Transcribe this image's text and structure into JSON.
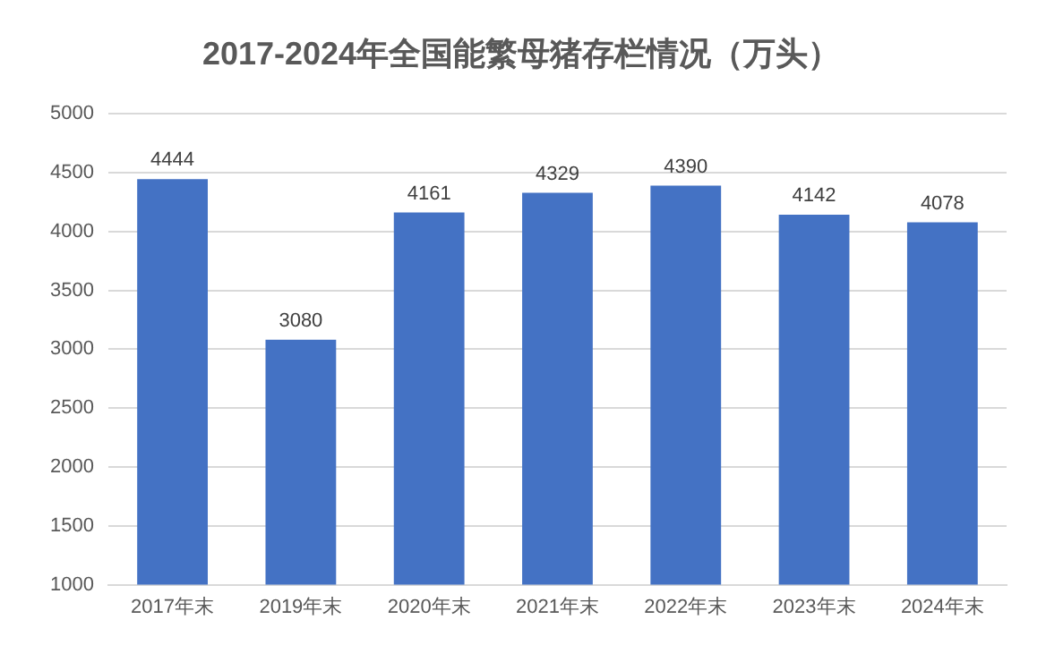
{
  "chart_data": {
    "type": "bar",
    "title": "2017-2024年全国能繁母猪存栏情况（万头）",
    "categories": [
      "2017年末",
      "2019年末",
      "2020年末",
      "2021年末",
      "2022年末",
      "2023年末",
      "2024年末"
    ],
    "values": [
      4444,
      3080,
      4161,
      4329,
      4390,
      4142,
      4078
    ],
    "color": "#4472c4",
    "ylim": [
      1000,
      5000
    ],
    "yticks": [
      1000,
      1500,
      2000,
      2500,
      3000,
      3500,
      4000,
      4500,
      5000
    ],
    "grid": "y",
    "data_labels": true,
    "legend": false
  }
}
